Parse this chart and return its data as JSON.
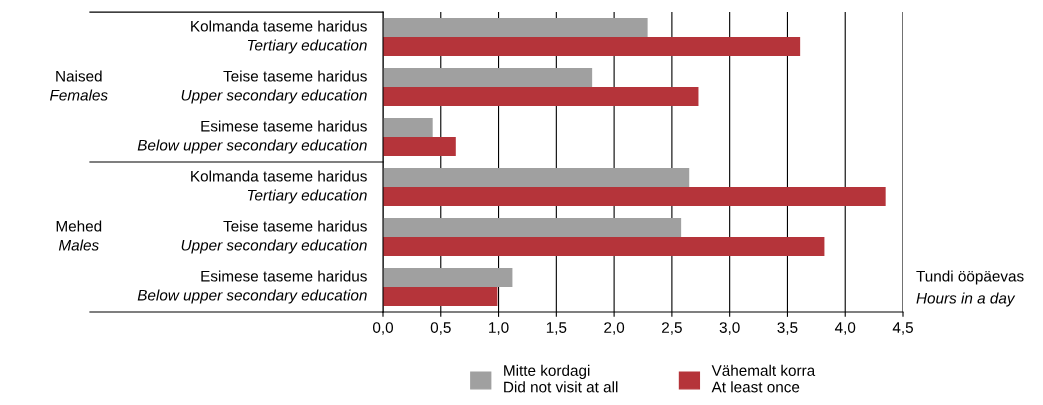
{
  "chart_data": {
    "type": "bar",
    "orientation": "horizontal",
    "categories": [
      "Kolmanda taseme haridus\nTertiary education",
      "Teise taseme haridus\nUpper secondary education",
      "Esimese taseme haridus\nBelow upper secondary education",
      "Kolmanda taseme haridus\nTertiary education",
      "Teise taseme haridus\nUpper secondary education",
      "Esimese taseme haridus\nBelow upper secondary education"
    ],
    "series": [
      {
        "name": "Mitte kordagi\nDid not visit at all",
        "color": "#a0a0a0",
        "values": [
          2.29,
          1.81,
          0.43,
          2.65,
          2.58,
          1.12
        ]
      },
      {
        "name": "Vähemalt korra\nAt least once",
        "color": "#b5343a",
        "values": [
          3.61,
          2.73,
          0.63,
          4.35,
          3.82,
          0.99
        ]
      }
    ],
    "xlabel": "Tundi ööpäevas\nHours in a day",
    "annotations": [
      "Naised\nFemales",
      "Mehed\nMales"
    ],
    "xlim": [
      0,
      4.5
    ],
    "xticks": [
      {
        "value": 0,
        "label": "0,0"
      },
      {
        "value": 0.5,
        "label": "0,5"
      },
      {
        "value": 1,
        "label": "1,0"
      },
      {
        "value": 1.5,
        "label": "1,5"
      },
      {
        "value": 2,
        "label": "2,0"
      },
      {
        "value": 2.5,
        "label": "2,5"
      },
      {
        "value": 3,
        "label": "3,0"
      },
      {
        "value": 3.5,
        "label": "3,5"
      },
      {
        "value": 4,
        "label": "4,0"
      },
      {
        "value": 4.5,
        "label": "4,5"
      }
    ],
    "grid": "x",
    "legend": "bottom"
  }
}
